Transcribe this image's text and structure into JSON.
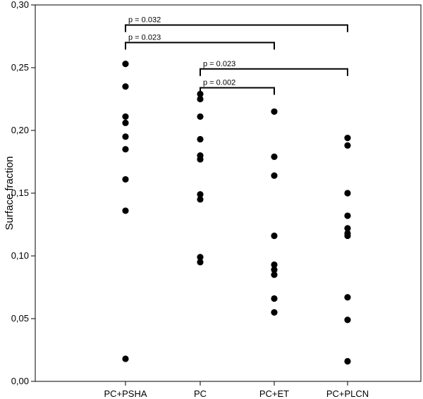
{
  "chart_data": {
    "type": "scatter",
    "title": "",
    "xlabel": "",
    "ylabel": "Surface fraction",
    "ylim": [
      0,
      0.3
    ],
    "yticks": [
      0.0,
      0.05,
      0.1,
      0.15,
      0.2,
      0.25,
      0.3
    ],
    "ytick_labels": [
      "0,00",
      "0,05",
      "0,10",
      "0,15",
      "0,20",
      "0,25",
      "0,30"
    ],
    "categories": [
      "PC+PSHA",
      "PC",
      "PC+ET",
      "PC+PLCN"
    ],
    "series": [
      {
        "category": "PC+PSHA",
        "values": [
          0.253,
          0.235,
          0.211,
          0.206,
          0.195,
          0.185,
          0.161,
          0.136,
          0.018
        ]
      },
      {
        "category": "PC",
        "values": [
          0.229,
          0.225,
          0.211,
          0.193,
          0.18,
          0.177,
          0.149,
          0.145,
          0.099,
          0.095
        ]
      },
      {
        "category": "PC+ET",
        "values": [
          0.215,
          0.179,
          0.164,
          0.116,
          0.093,
          0.089,
          0.085,
          0.066,
          0.055
        ]
      },
      {
        "category": "PC+PLCN",
        "values": [
          0.194,
          0.188,
          0.15,
          0.132,
          0.122,
          0.118,
          0.116,
          0.067,
          0.049,
          0.016
        ]
      }
    ],
    "comparisons": [
      {
        "from": "PC+PSHA",
        "to": "PC+PLCN",
        "y": 0.284,
        "label": "p = 0.032"
      },
      {
        "from": "PC+PSHA",
        "to": "PC+ET",
        "y": 0.27,
        "label": "p = 0.023"
      },
      {
        "from": "PC",
        "to": "PC+PLCN",
        "y": 0.249,
        "label": "p = 0.023"
      },
      {
        "from": "PC",
        "to": "PC+ET",
        "y": 0.234,
        "label": "p = 0.002"
      }
    ],
    "grid": false,
    "legend": "none"
  }
}
